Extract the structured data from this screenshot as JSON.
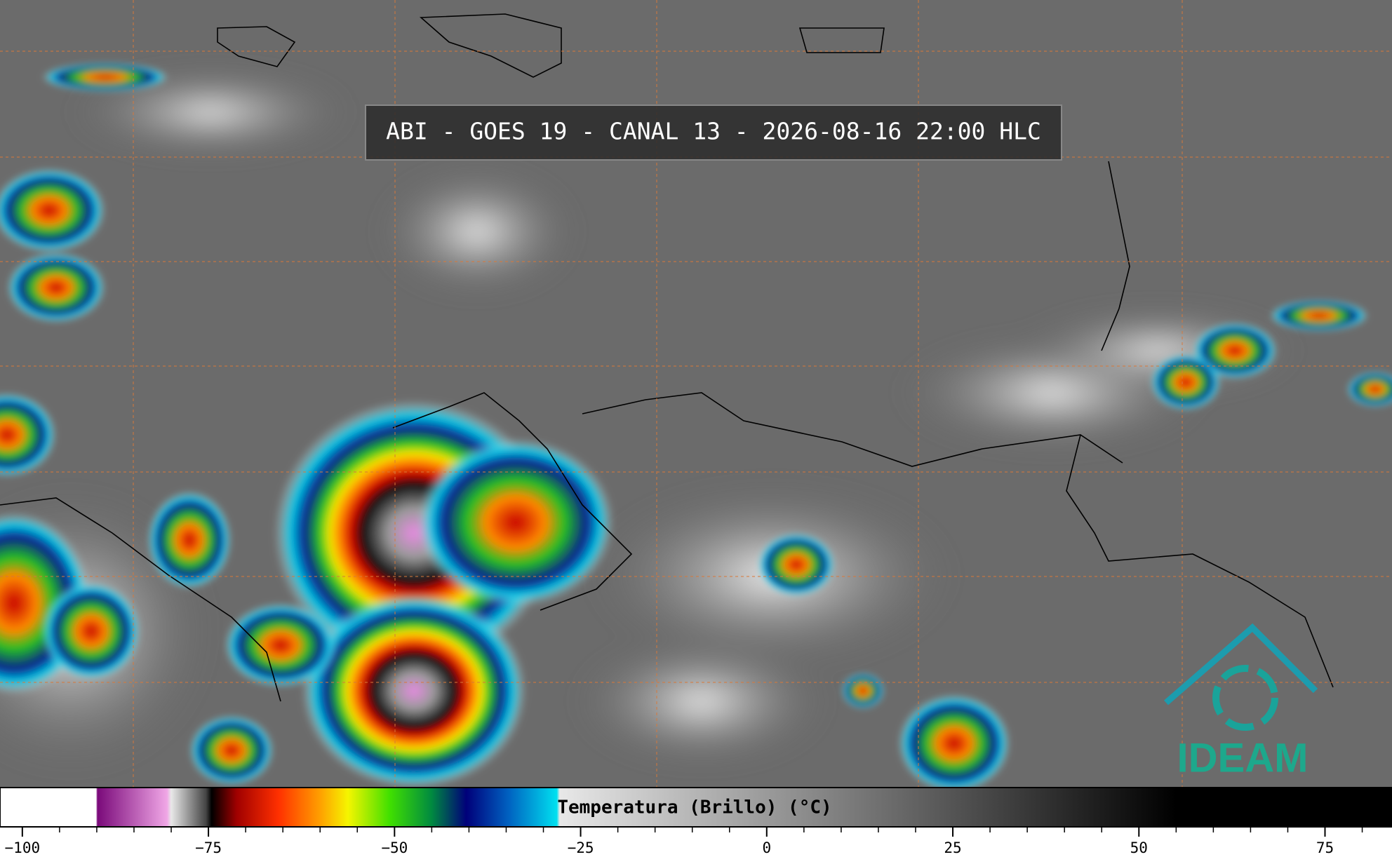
{
  "title": "ABI - GOES 19 - CANAL 13 - 2026-08-16 22:00 HLC",
  "colorbar": {
    "label": "Temperatura (Brillo) (°C)",
    "range": [
      -103,
      84
    ],
    "ticks": [
      {
        "value": -100,
        "label": "−100"
      },
      {
        "value": -75,
        "label": "−75"
      },
      {
        "value": -50,
        "label": "−50"
      },
      {
        "value": -25,
        "label": "−25"
      },
      0,
      25,
      50,
      75
    ],
    "minor_ticks": [
      -95,
      -90,
      -85,
      -80,
      -70,
      -65,
      -60,
      -55,
      -45,
      -40,
      -35,
      -30,
      -20,
      -15,
      -10,
      -5,
      5,
      10,
      15,
      20,
      30,
      35,
      40,
      45,
      55,
      60,
      65,
      70,
      80
    ]
  },
  "logo": "IDEAM"
}
